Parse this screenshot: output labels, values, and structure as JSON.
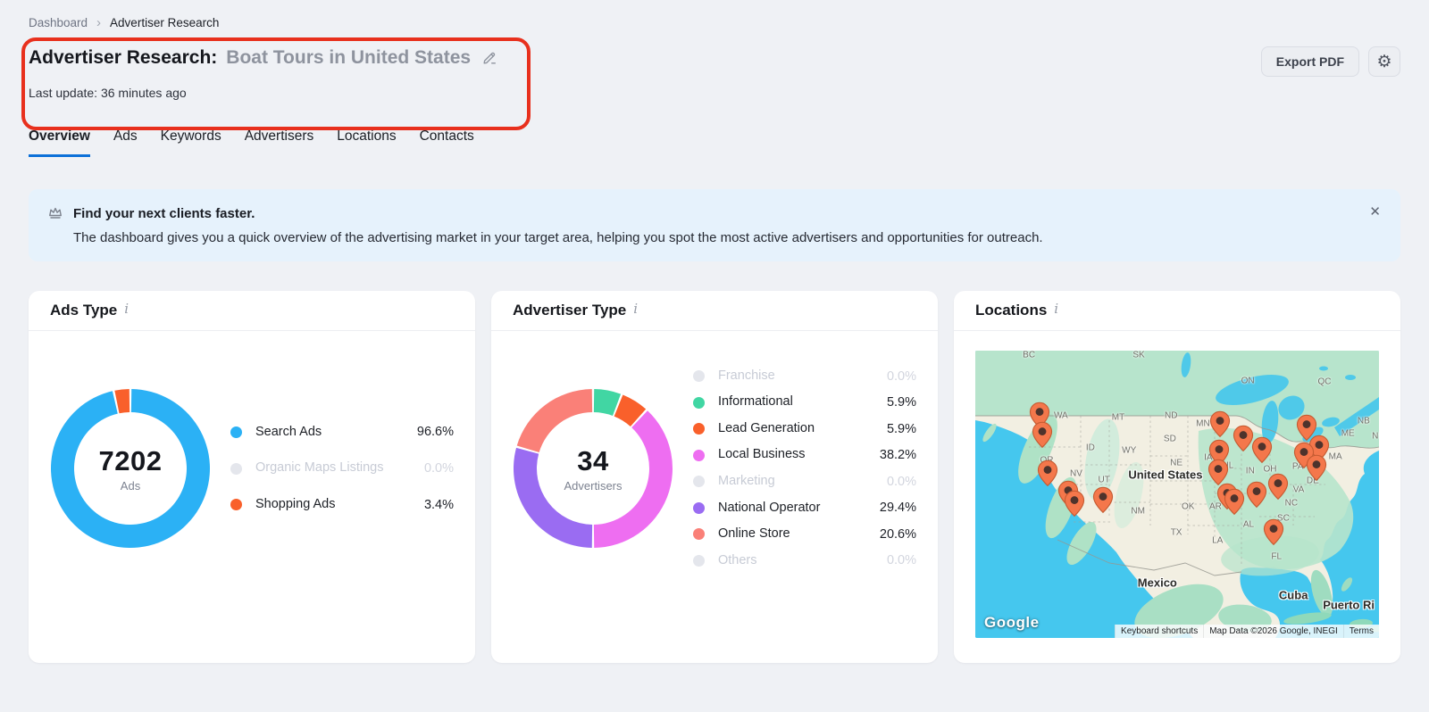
{
  "breadcrumb": {
    "root": "Dashboard",
    "current": "Advertiser Research"
  },
  "header": {
    "title_prefix": "Advertiser Research:",
    "title_query": "Boat Tours in United States",
    "last_update": "Last update: 36 minutes ago",
    "export_button": "Export PDF"
  },
  "tabs": [
    {
      "label": "Overview",
      "active": true
    },
    {
      "label": "Ads",
      "active": false
    },
    {
      "label": "Keywords",
      "active": false
    },
    {
      "label": "Advertisers",
      "active": false
    },
    {
      "label": "Locations",
      "active": false
    },
    {
      "label": "Contacts",
      "active": false
    }
  ],
  "banner": {
    "title": "Find your next clients faster.",
    "body": "The dashboard gives you a quick overview of the advertising market in your target area, helping you spot the most active advertisers and opportunities for outreach.",
    "close_icon": "✕"
  },
  "colors": {
    "accent_blue": "#0C70D8",
    "annotation_red": "#E8301D",
    "donut_blue": "#2BB1F5",
    "donut_orange": "#F9602B",
    "donut_green": "#41D6A3",
    "donut_magenta": "#EE6EF1",
    "donut_purple": "#9A6CF2",
    "donut_salmon": "#FA8078",
    "muted_gray": "#E4E6EC"
  },
  "cards": {
    "ads_type": {
      "title": "Ads Type",
      "info_icon": "i",
      "center_number": "7202",
      "center_sub": "Ads"
    },
    "advertiser_type": {
      "title": "Advertiser Type",
      "info_icon": "i",
      "center_number": "34",
      "center_sub": "Advertisers"
    },
    "locations": {
      "title": "Locations",
      "info_icon": "i"
    }
  },
  "chart_data": [
    {
      "type": "pie",
      "title": "Ads Type",
      "center_label": "7202 Ads",
      "legend_position": "right",
      "segments": [
        {
          "label": "Search Ads",
          "pct": 96.6,
          "value": "96.6%",
          "color": "#2BB1F5"
        },
        {
          "label": "Organic Maps Listings",
          "pct": 0.0,
          "value": "0.0%",
          "color": "#E4E6EC"
        },
        {
          "label": "Shopping Ads",
          "pct": 3.4,
          "value": "3.4%",
          "color": "#F9602B"
        }
      ]
    },
    {
      "type": "pie",
      "title": "Advertiser Type",
      "center_label": "34 Advertisers",
      "legend_position": "right",
      "segments": [
        {
          "label": "Franchise",
          "pct": 0.0,
          "value": "0.0%",
          "color": "#E4E6EC"
        },
        {
          "label": "Informational",
          "pct": 5.9,
          "value": "5.9%",
          "color": "#41D6A3"
        },
        {
          "label": "Lead Generation",
          "pct": 5.9,
          "value": "5.9%",
          "color": "#F9602B"
        },
        {
          "label": "Local Business",
          "pct": 38.2,
          "value": "38.2%",
          "color": "#EE6EF1"
        },
        {
          "label": "Marketing",
          "pct": 0.0,
          "value": "0.0%",
          "color": "#E4E6EC"
        },
        {
          "label": "National Operator",
          "pct": 29.4,
          "value": "29.4%",
          "color": "#9A6CF2"
        },
        {
          "label": "Online Store",
          "pct": 20.6,
          "value": "20.6%",
          "color": "#FA8078"
        },
        {
          "label": "Others",
          "pct": 0.0,
          "value": "0.0%",
          "color": "#E4E6EC"
        }
      ]
    },
    {
      "type": "map",
      "title": "Locations",
      "google_logo": "Google",
      "attribution": [
        "Keyboard shortcuts",
        "Map Data ©2026 Google, INEGI",
        "Terms"
      ],
      "labels": [
        {
          "t": "BC",
          "x": 13.3,
          "y": 1.5
        },
        {
          "t": "SK",
          "x": 40.5,
          "y": 1.5
        },
        {
          "t": "ON",
          "x": 67.5,
          "y": 10.6
        },
        {
          "t": "QC",
          "x": 86.5,
          "y": 10.9
        },
        {
          "t": "NB",
          "x": 96.2,
          "y": 24.5
        },
        {
          "t": "ME",
          "x": 92.3,
          "y": 28.9
        },
        {
          "t": "NS",
          "x": 99.8,
          "y": 29.8
        },
        {
          "t": "WA",
          "x": 21.2,
          "y": 22.7
        },
        {
          "t": "MT",
          "x": 35.4,
          "y": 23.3
        },
        {
          "t": "ND",
          "x": 48.5,
          "y": 22.7
        },
        {
          "t": "MN",
          "x": 56.4,
          "y": 25.5
        },
        {
          "t": "SD",
          "x": 48.2,
          "y": 30.7
        },
        {
          "t": "OR",
          "x": 17.7,
          "y": 38.2
        },
        {
          "t": "ID",
          "x": 28.5,
          "y": 33.9
        },
        {
          "t": "WY",
          "x": 38.1,
          "y": 34.8
        },
        {
          "t": "NE",
          "x": 49.8,
          "y": 39.1
        },
        {
          "t": "IA",
          "x": 57.7,
          "y": 37.3
        },
        {
          "t": "IL",
          "x": 63.1,
          "y": 40.1
        },
        {
          "t": "IN",
          "x": 68.1,
          "y": 41.9
        },
        {
          "t": "OH",
          "x": 73.0,
          "y": 41.3
        },
        {
          "t": "PA",
          "x": 79.9,
          "y": 40.4
        },
        {
          "t": "MA",
          "x": 89.2,
          "y": 37.0
        },
        {
          "t": "DE",
          "x": 83.6,
          "y": 45.3
        },
        {
          "t": "NV",
          "x": 25.0,
          "y": 42.9
        },
        {
          "t": "UT",
          "x": 31.9,
          "y": 45.0
        },
        {
          "t": "VA",
          "x": 80.1,
          "y": 48.4
        },
        {
          "t": "NC",
          "x": 78.3,
          "y": 53.1
        },
        {
          "t": "OK",
          "x": 52.7,
          "y": 54.3
        },
        {
          "t": "AR",
          "x": 59.5,
          "y": 54.3
        },
        {
          "t": "NM",
          "x": 40.3,
          "y": 55.9
        },
        {
          "t": "TX",
          "x": 49.8,
          "y": 63.4
        },
        {
          "t": "LA",
          "x": 60.0,
          "y": 66.1
        },
        {
          "t": "AL",
          "x": 67.7,
          "y": 60.6
        },
        {
          "t": "SC",
          "x": 76.3,
          "y": 58.4
        },
        {
          "t": "FL",
          "x": 74.6,
          "y": 71.7
        },
        {
          "t": "United States",
          "x": 47.1,
          "y": 43.2,
          "country": true
        },
        {
          "t": "Mexico",
          "x": 45.1,
          "y": 80.7,
          "country": true
        },
        {
          "t": "Cuba",
          "x": 78.8,
          "y": 85.1,
          "country": true
        },
        {
          "t": "Puerto Ri",
          "x": 92.5,
          "y": 88.5,
          "country": true
        }
      ],
      "pins": [
        {
          "x": 15.9,
          "y": 22.7
        },
        {
          "x": 16.6,
          "y": 29.5
        },
        {
          "x": 17.9,
          "y": 42.9
        },
        {
          "x": 23.0,
          "y": 50.0
        },
        {
          "x": 24.6,
          "y": 53.4
        },
        {
          "x": 31.6,
          "y": 52.2
        },
        {
          "x": 60.6,
          "y": 25.8
        },
        {
          "x": 66.4,
          "y": 30.7
        },
        {
          "x": 71.0,
          "y": 34.8
        },
        {
          "x": 60.4,
          "y": 35.7
        },
        {
          "x": 60.2,
          "y": 42.5
        },
        {
          "x": 62.4,
          "y": 50.9
        },
        {
          "x": 64.2,
          "y": 52.8
        },
        {
          "x": 69.7,
          "y": 50.3
        },
        {
          "x": 75.0,
          "y": 47.5
        },
        {
          "x": 73.9,
          "y": 63.4
        },
        {
          "x": 82.1,
          "y": 27.0
        },
        {
          "x": 85.2,
          "y": 34.2
        },
        {
          "x": 81.4,
          "y": 36.6
        },
        {
          "x": 84.5,
          "y": 41.0
        }
      ]
    }
  ]
}
